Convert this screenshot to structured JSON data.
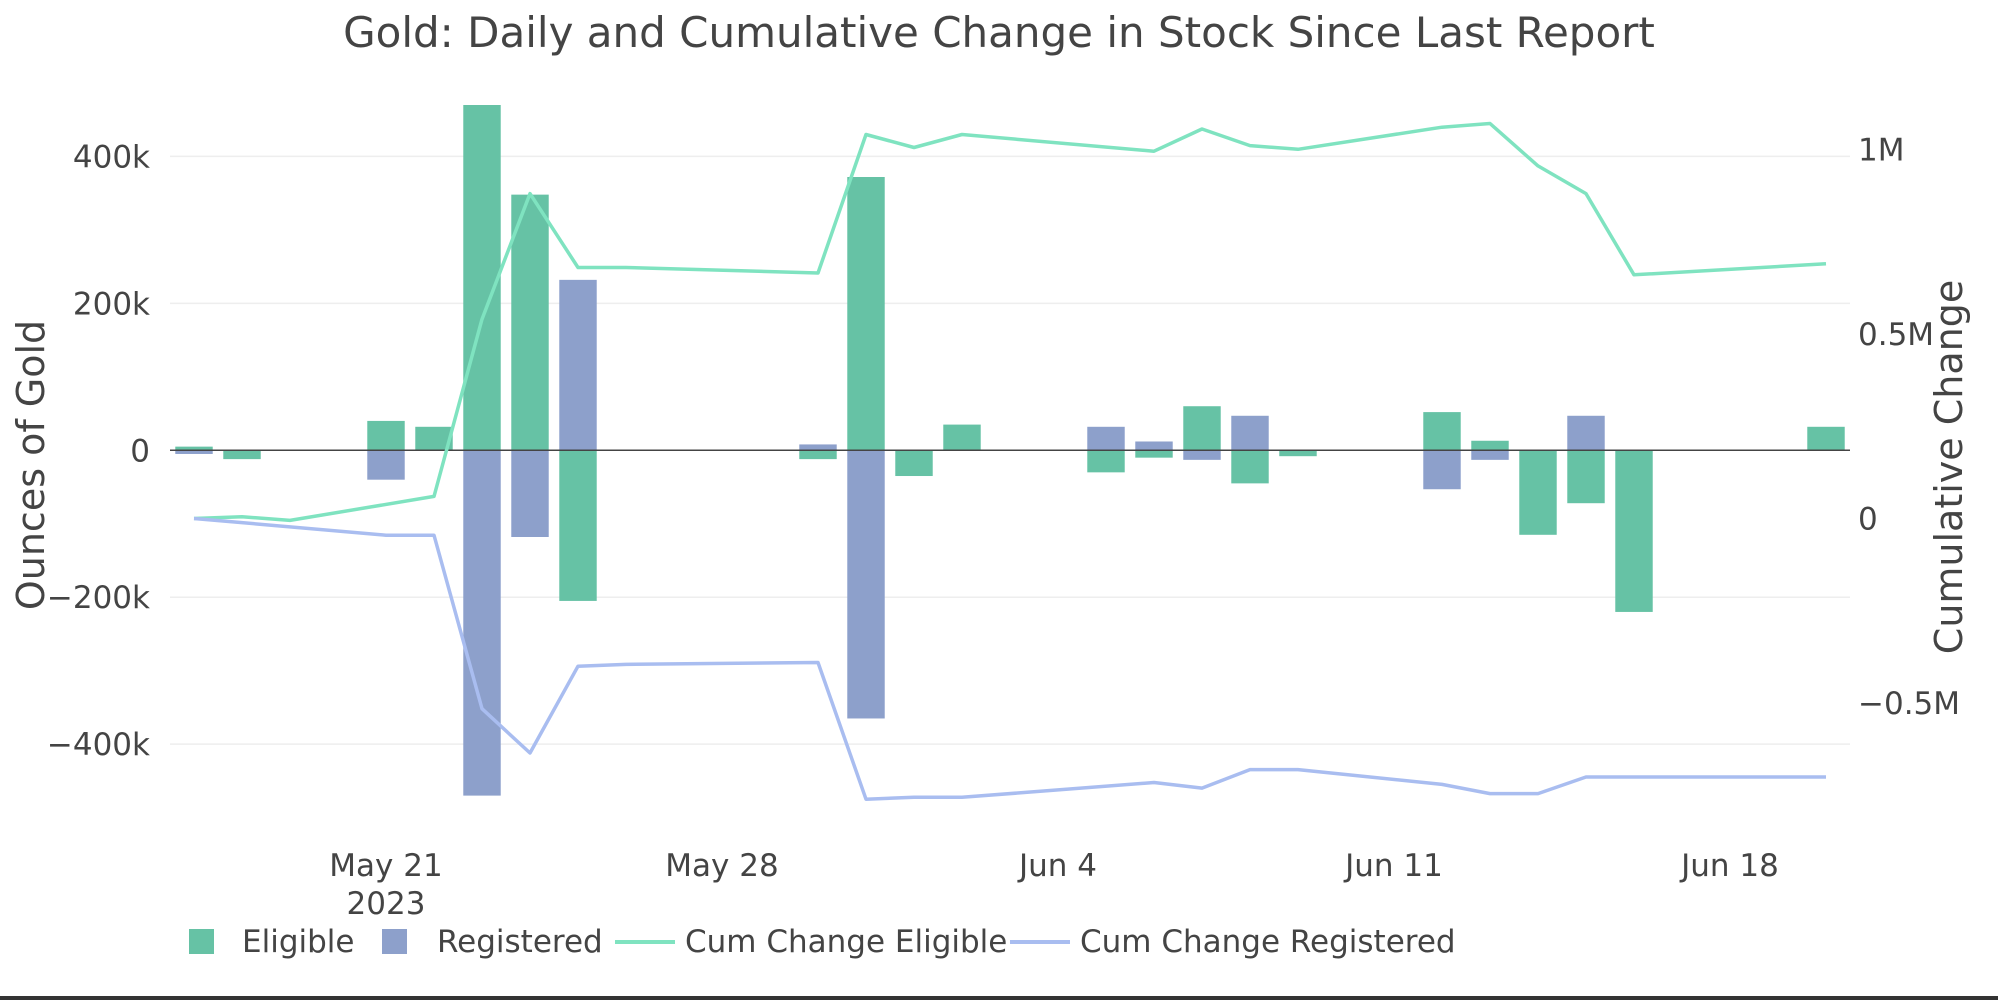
{
  "chart_data": {
    "type": "bar",
    "title": "Gold: Daily and Cumulative Change in Stock Since Last Report",
    "ylabel": "Ounces of Gold",
    "y2label": "Cumulative Change",
    "xlabel": "",
    "ylim": [
      -510000,
      470000
    ],
    "y2lim": [
      -830000,
      1120000
    ],
    "yticks": [
      -400000,
      -200000,
      0,
      200000,
      400000
    ],
    "yticklabels": [
      "−400k",
      "−200k",
      "0",
      "200k",
      "400k"
    ],
    "y2ticks": [
      -500000,
      0,
      500000,
      1000000
    ],
    "y2ticklabels": [
      "−0.5M",
      "0",
      "0.5M",
      "1M"
    ],
    "xlim": [
      "2023-05-16T12:00",
      "2023-06-20T12:00"
    ],
    "xticks": [
      "2023-05-21",
      "2023-05-28",
      "2023-06-04",
      "2023-06-11",
      "2023-06-18"
    ],
    "xticklabels": [
      "May 21",
      "May 28",
      "Jun 4",
      "Jun 11",
      "Jun 18"
    ],
    "xticksub": "2023",
    "barmode": "overlay",
    "grid": true,
    "legend_position": "bottom-left",
    "colors": {
      "eligible": "#66c2a5",
      "registered": "#8da0cb",
      "cum_eligible": "#7fe3c0",
      "cum_registered": "#a9bdf0"
    },
    "series": [
      {
        "name": "Eligible",
        "kind": "bar",
        "axis": "y",
        "x": [
          "2023-05-17",
          "2023-05-18",
          "2023-05-21",
          "2023-05-22",
          "2023-05-23",
          "2023-05-24",
          "2023-05-25",
          "2023-05-30",
          "2023-05-31",
          "2023-06-01",
          "2023-06-02",
          "2023-06-05",
          "2023-06-06",
          "2023-06-07",
          "2023-06-08",
          "2023-06-09",
          "2023-06-12",
          "2023-06-13",
          "2023-06-14",
          "2023-06-15",
          "2023-06-16",
          "2023-06-20"
        ],
        "values": [
          5000,
          -12000,
          40000,
          32000,
          470000,
          348000,
          -205000,
          -12000,
          372000,
          -35000,
          35000,
          -30000,
          -10000,
          60000,
          -45000,
          -8000,
          52000,
          13000,
          -115000,
          -72000,
          -220000,
          32000
        ]
      },
      {
        "name": "Registered",
        "kind": "bar",
        "axis": "y",
        "x": [
          "2023-05-17",
          "2023-05-21",
          "2023-05-23",
          "2023-05-24",
          "2023-05-25",
          "2023-05-30",
          "2023-05-31",
          "2023-06-05",
          "2023-06-06",
          "2023-06-07",
          "2023-06-08",
          "2023-06-12",
          "2023-06-13",
          "2023-06-15"
        ],
        "values": [
          -5000,
          -40000,
          -470000,
          -118000,
          232000,
          8000,
          -365000,
          32000,
          12000,
          -13000,
          47000,
          -53000,
          -13000,
          47000
        ]
      },
      {
        "name": "Cum Change Eligible",
        "kind": "line",
        "axis": "y2",
        "x": [
          "2023-05-17",
          "2023-05-18",
          "2023-05-19",
          "2023-05-22",
          "2023-05-23",
          "2023-05-24",
          "2023-05-25",
          "2023-05-26",
          "2023-05-30",
          "2023-05-31",
          "2023-06-01",
          "2023-06-02",
          "2023-06-06",
          "2023-06-07",
          "2023-06-08",
          "2023-06-09",
          "2023-06-12",
          "2023-06-13",
          "2023-06-14",
          "2023-06-15",
          "2023-06-16",
          "2023-06-20"
        ],
        "values": [
          0,
          5000,
          -5000,
          60000,
          540000,
          880000,
          680000,
          680000,
          665000,
          1040000,
          1005000,
          1040000,
          995000,
          1055000,
          1010000,
          1000000,
          1060000,
          1070000,
          955000,
          880000,
          660000,
          690000
        ]
      },
      {
        "name": "Cum Change Registered",
        "kind": "line",
        "axis": "y2",
        "x": [
          "2023-05-17",
          "2023-05-21",
          "2023-05-22",
          "2023-05-23",
          "2023-05-24",
          "2023-05-25",
          "2023-05-26",
          "2023-05-30",
          "2023-05-31",
          "2023-06-01",
          "2023-06-02",
          "2023-06-06",
          "2023-06-07",
          "2023-06-08",
          "2023-06-09",
          "2023-06-12",
          "2023-06-13",
          "2023-06-14",
          "2023-06-15",
          "2023-06-16",
          "2023-06-20"
        ],
        "values": [
          0,
          -45000,
          -45000,
          -515000,
          -635000,
          -400000,
          -395000,
          -390000,
          -760000,
          -755000,
          -755000,
          -715000,
          -730000,
          -680000,
          -680000,
          -720000,
          -745000,
          -745000,
          -700000,
          -700000,
          -700000
        ]
      }
    ]
  }
}
